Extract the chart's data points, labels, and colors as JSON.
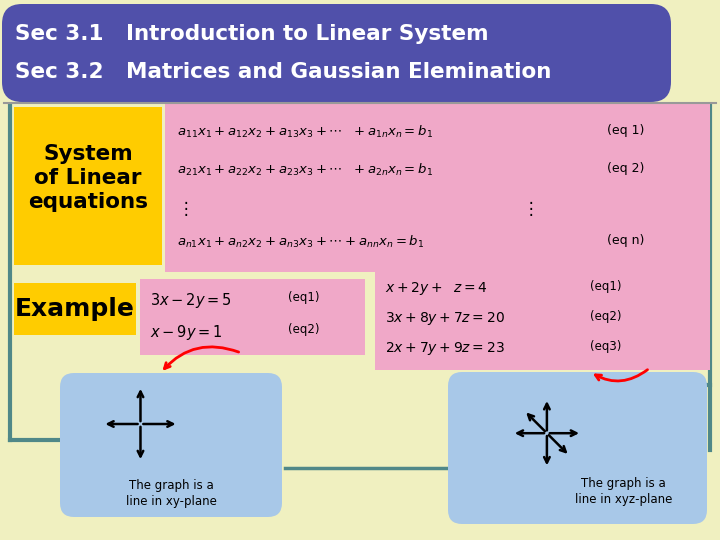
{
  "bg_color": "#f0f0c0",
  "header_bg": "#5050aa",
  "header_text_color": "#ffffff",
  "header_line1": "Sec 3.1   Introduction to Linear System",
  "header_line2": "Sec 3.2   Matrices and Gaussian Elemination",
  "yellow_box_color": "#ffcc00",
  "pink_box_color": "#f0a8c8",
  "blue_box_color": "#a8c8e8",
  "teal_color": "#508888",
  "system_label": "System\nof Linear\nequations",
  "example_label": "Example",
  "label_xy": "The graph is a\nline in xy-plane",
  "label_xyz": "The graph is a\nline in xyz-plane"
}
